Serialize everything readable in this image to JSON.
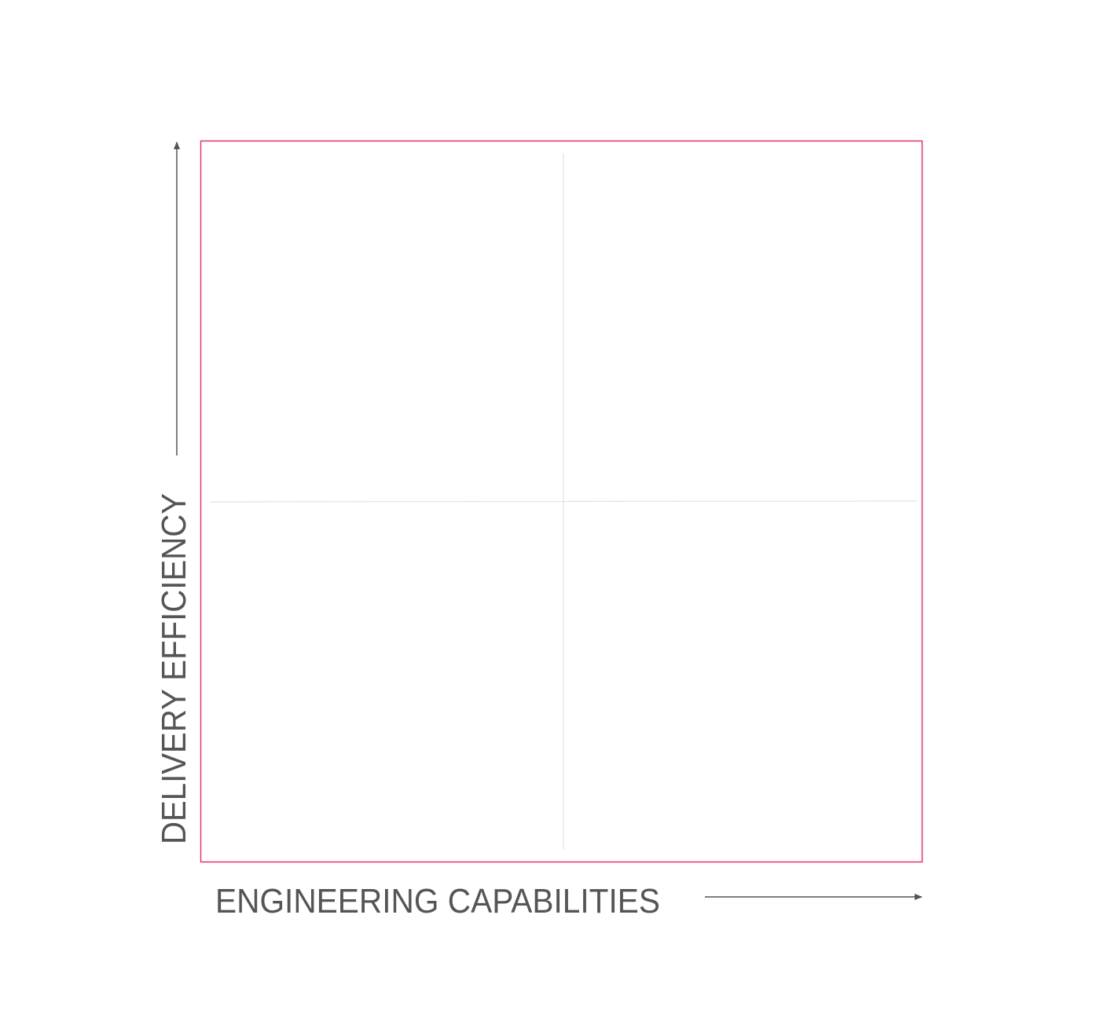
{
  "x_axis_label": "ENGINEERING CAPABILITIES",
  "y_axis_label": "DELIVERY EFFICIENCY"
}
